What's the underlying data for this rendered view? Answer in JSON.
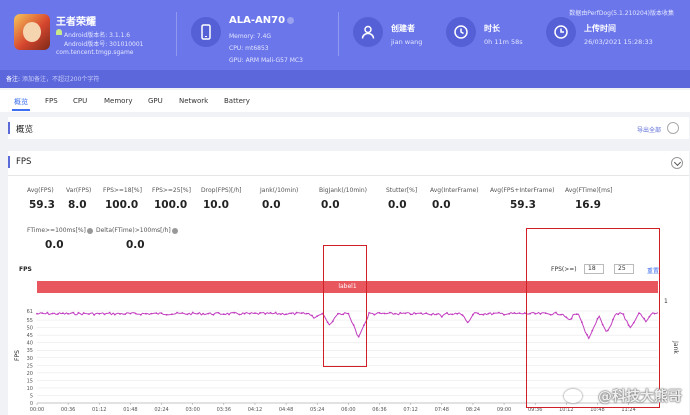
{
  "app": {
    "name": "王者荣耀",
    "android_version_name": "Android版本名: 3.1.1.6",
    "android_version_code": "Android版本号: 301010001",
    "package": "com.tencent.tmgp.sgame"
  },
  "device": {
    "model": "ALA-AN70",
    "memory": "Memory: 7.4G",
    "cpu": "CPU: mt6853",
    "gpu": "GPU: ARM Mali-G57 MC3"
  },
  "creator": {
    "label": "创建者",
    "value": "jian wang"
  },
  "duration": {
    "label": "时长",
    "value": "0h 11m 58s"
  },
  "upload": {
    "label": "上传时间",
    "value": "26/03/2021 15:28:33"
  },
  "version_note": "数据由PerfDog(5.1.210204)版本收集",
  "remark": {
    "key": "备注:",
    "placeholder": "添加备注，不超过200个字符"
  },
  "tabs": [
    "概览",
    "FPS",
    "CPU",
    "Memory",
    "GPU",
    "Network",
    "Battery"
  ],
  "overview": {
    "title": "概览",
    "export": "导出全部"
  },
  "fps_section": {
    "title": "FPS",
    "metrics_row1": [
      {
        "label": "Avg(FPS)",
        "value": "59.3"
      },
      {
        "label": "Var(FPS)",
        "value": "8.0"
      },
      {
        "label": "FPS>=18[%]",
        "value": "100.0"
      },
      {
        "label": "FPS>=25[%]",
        "value": "100.0"
      },
      {
        "label": "Drop(FPS)[/h]",
        "value": "10.0"
      },
      {
        "label": "Jank(/10min)",
        "value": "0.0"
      },
      {
        "label": "BigJank(/10min)",
        "value": "0.0"
      },
      {
        "label": "Stutter[%]",
        "value": "0.0"
      },
      {
        "label": "Avg(InterFrame)",
        "value": "0.0"
      },
      {
        "label": "Avg(FPS+InterFrame)",
        "value": "59.3"
      },
      {
        "label": "Avg(FTime)[ms]",
        "value": "16.9"
      }
    ],
    "metrics_row2": [
      {
        "label": "FTime>=100ms[%]",
        "value": "0.0"
      },
      {
        "label": "Delta(FTime)>100ms[/h]",
        "value": "0.0"
      }
    ],
    "chart_label": "FPS",
    "threshold_label": "FPS(>=)",
    "threshold_1": "18",
    "threshold_2": "25",
    "reset": "重置",
    "band_label": "label1",
    "right_axis_top": "1",
    "right_axis_label": "Jank"
  },
  "chart_data": {
    "type": "line",
    "ylabel": "FPS",
    "ylim": [
      0,
      61
    ],
    "yticks": [
      0,
      5,
      10,
      15,
      20,
      25,
      30,
      35,
      40,
      45,
      50,
      55,
      61
    ],
    "xticks": [
      "00:00",
      "00:36",
      "01:12",
      "01:48",
      "02:24",
      "03:00",
      "03:36",
      "04:12",
      "04:48",
      "05:24",
      "06:00",
      "06:36",
      "07:12",
      "07:48",
      "08:24",
      "09:00",
      "09:36",
      "10:12",
      "10:48",
      "11:24"
    ],
    "duration_seconds": 718,
    "baseline_fps": 60,
    "dips": [
      {
        "t": 321,
        "min": 57
      },
      {
        "t": 339,
        "min": 52
      },
      {
        "t": 372,
        "min": 44
      },
      {
        "t": 468,
        "min": 58
      },
      {
        "t": 498,
        "min": 54
      },
      {
        "t": 615,
        "min": 55
      },
      {
        "t": 638,
        "min": 43
      },
      {
        "t": 659,
        "min": 47
      },
      {
        "t": 686,
        "min": 50
      },
      {
        "t": 704,
        "min": 55
      }
    ]
  },
  "watermark": "@科技大熊哥"
}
